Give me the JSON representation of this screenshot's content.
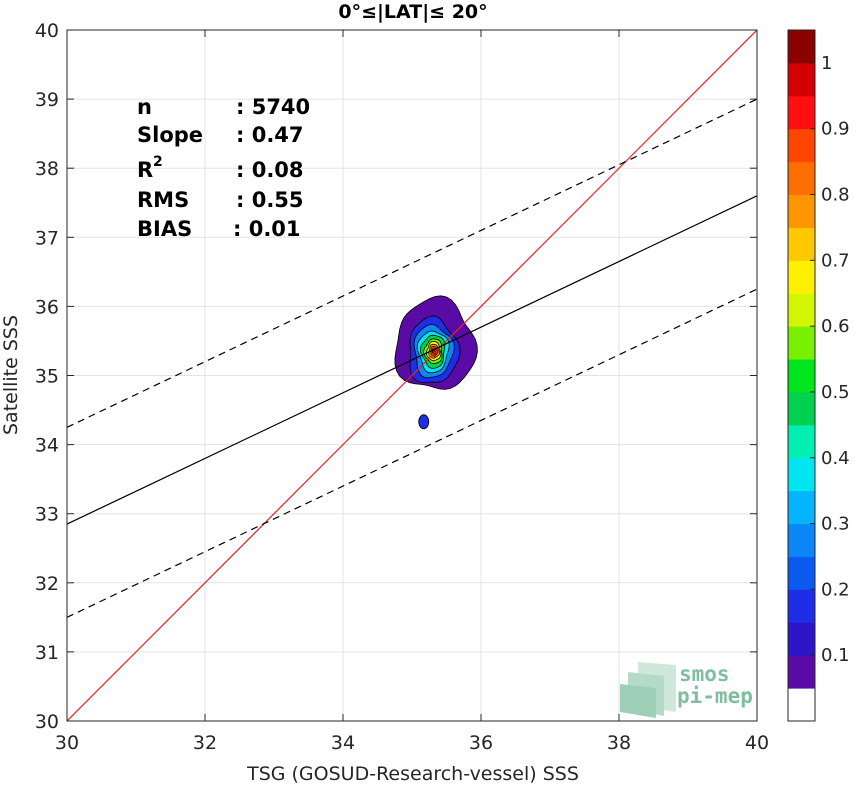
{
  "chart_data": {
    "type": "scatter",
    "subtype": "density-contour",
    "title": "0°≤|LAT|≤ 20°",
    "xlabel": "TSG (GOSUD-Research-vessel) SSS",
    "ylabel": "Satellite SSS",
    "xlim": [
      30,
      40
    ],
    "ylim": [
      30,
      40
    ],
    "x_ticks": [
      "30",
      "32",
      "34",
      "36",
      "38",
      "40"
    ],
    "y_ticks": [
      "30",
      "31",
      "32",
      "33",
      "34",
      "35",
      "36",
      "37",
      "38",
      "39",
      "40"
    ],
    "grid": true,
    "stats": [
      {
        "label": "n",
        "value": ": 5740"
      },
      {
        "label": "Slope",
        "value": ": 0.47"
      },
      {
        "label": "R",
        "sup": "2",
        "value": ": 0.08"
      },
      {
        "label": "RMS",
        "value": ": 0.55"
      },
      {
        "label": "BIAS",
        "value": ": 0.01"
      }
    ],
    "lines": [
      {
        "kind": "identity",
        "color": "#e8251e",
        "style": "solid",
        "points": [
          [
            30,
            30
          ],
          [
            40,
            40
          ]
        ]
      },
      {
        "kind": "regression",
        "color": "#000000",
        "style": "solid",
        "points": [
          [
            30,
            32.85
          ],
          [
            40,
            37.6
          ]
        ]
      },
      {
        "kind": "regression+2sd",
        "color": "#000000",
        "style": "dashed",
        "points": [
          [
            30,
            34.25
          ],
          [
            40,
            39.0
          ]
        ]
      },
      {
        "kind": "regression-2sd",
        "color": "#000000",
        "style": "dashed",
        "points": [
          [
            30,
            31.5
          ],
          [
            40,
            36.25
          ]
        ]
      }
    ],
    "density_center": [
      35.3,
      35.35
    ],
    "density_levels": [
      {
        "level": 0.05,
        "rx": 0.58,
        "ry": 0.66
      },
      {
        "level": 0.15,
        "rx": 0.36,
        "ry": 0.48
      },
      {
        "level": 0.25,
        "rx": 0.28,
        "ry": 0.38
      },
      {
        "level": 0.35,
        "rx": 0.22,
        "ry": 0.3
      },
      {
        "level": 0.45,
        "rx": 0.17,
        "ry": 0.24
      },
      {
        "level": 0.55,
        "rx": 0.13,
        "ry": 0.18
      },
      {
        "level": 0.65,
        "rx": 0.1,
        "ry": 0.14
      },
      {
        "level": 0.75,
        "rx": 0.075,
        "ry": 0.1
      },
      {
        "level": 0.85,
        "rx": 0.05,
        "ry": 0.07
      },
      {
        "level": 0.95,
        "rx": 0.028,
        "ry": 0.04
      }
    ],
    "small_blob": {
      "x": 35.17,
      "y": 34.33,
      "level": 0.15
    },
    "colorbar": {
      "ticks": [
        "0.1",
        "0.2",
        "0.3",
        "0.4",
        "0.5",
        "0.6",
        "0.7",
        "0.8",
        "0.9",
        "1"
      ],
      "tick_values": [
        0.1,
        0.2,
        0.3,
        0.4,
        0.5,
        0.6,
        0.7,
        0.8,
        0.9,
        1.0
      ],
      "colors": [
        "#ffffff",
        "#5a0aa5",
        "#2d14c8",
        "#1e2de6",
        "#0a5af0",
        "#0a87f5",
        "#05b4ff",
        "#00e6f0",
        "#00f0b4",
        "#00d250",
        "#00e61e",
        "#78f000",
        "#d2f500",
        "#fff000",
        "#ffc800",
        "#ff9600",
        "#ff6e00",
        "#ff4600",
        "#ff0f0f",
        "#d20000",
        "#8c0000"
      ]
    }
  },
  "logo": {
    "line1": "smos",
    "line2": "pi-mep"
  }
}
